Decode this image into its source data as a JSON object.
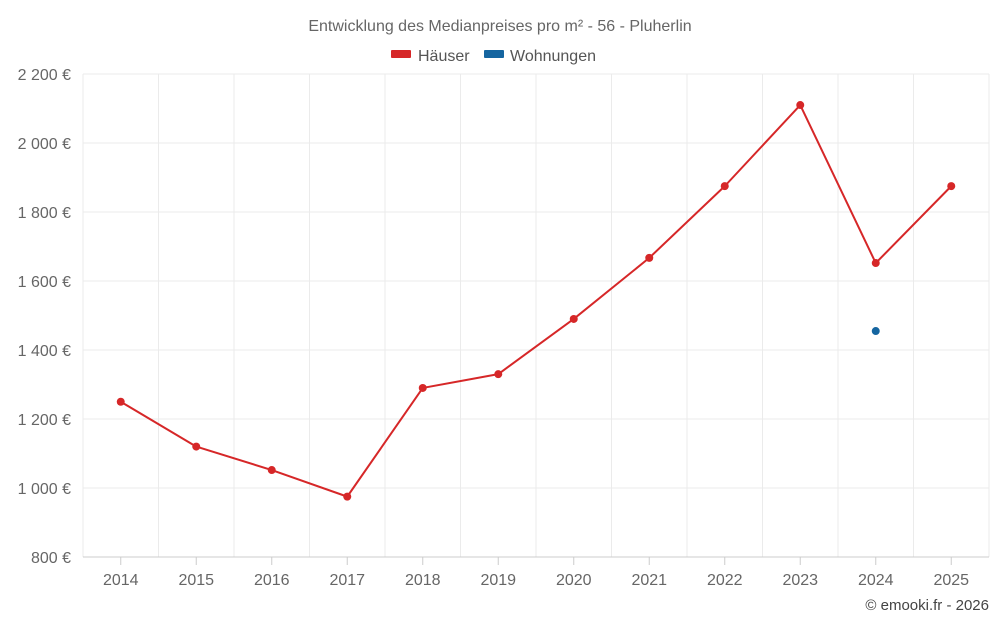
{
  "chart_data": {
    "type": "line",
    "title": "Entwicklung des Medianpreises pro m² - 56 - Pluherlin",
    "categories": [
      "2014",
      "2015",
      "2016",
      "2017",
      "2018",
      "2019",
      "2020",
      "2021",
      "2022",
      "2023",
      "2024",
      "2025"
    ],
    "series": [
      {
        "name": "Häuser",
        "color": "#d62728",
        "values": [
          1250,
          1120,
          1052,
          975,
          1290,
          1330,
          1490,
          1667,
          1875,
          2110,
          1652,
          1875
        ]
      },
      {
        "name": "Wohnungen",
        "color": "#1565a0",
        "values": [
          null,
          null,
          null,
          null,
          null,
          null,
          null,
          null,
          null,
          null,
          1455,
          null
        ]
      }
    ],
    "y_ticks": [
      800,
      1000,
      1200,
      1400,
      1600,
      1800,
      2000,
      2200
    ],
    "y_tick_labels": [
      "800 €",
      "1 000 €",
      "1 200 €",
      "1 400 €",
      "1 600 €",
      "1 800 €",
      "2 000 €",
      "2 200 €"
    ],
    "ylim": [
      800,
      2200
    ],
    "xlabel": "",
    "ylabel": "",
    "grid": true,
    "legend_position": "top-center"
  },
  "credit": "© emooki.fr - 2026"
}
